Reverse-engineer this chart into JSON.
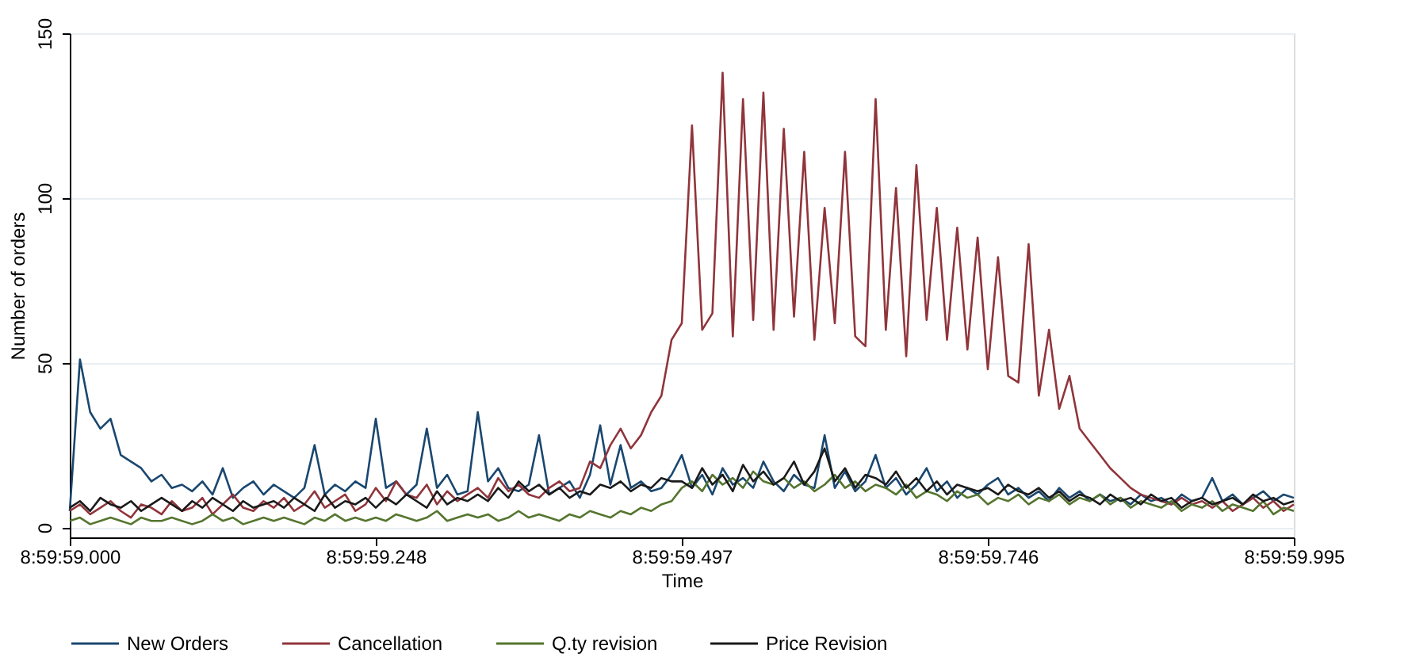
{
  "chart_data": {
    "type": "line",
    "xlabel": "Time",
    "ylabel": "Number of orders",
    "categories": [
      "8:59:59.000",
      null,
      null,
      null,
      null,
      null,
      null,
      null,
      null,
      null,
      null,
      null,
      null,
      null,
      null,
      null,
      null,
      null,
      null,
      null,
      null,
      null,
      null,
      null,
      null,
      null,
      null,
      null,
      null,
      null,
      "8:59:59.248",
      null,
      null,
      null,
      null,
      null,
      null,
      null,
      null,
      null,
      null,
      null,
      null,
      null,
      null,
      null,
      null,
      null,
      null,
      null,
      null,
      null,
      null,
      null,
      null,
      null,
      null,
      null,
      null,
      null,
      "8:59:59.497",
      null,
      null,
      null,
      null,
      null,
      null,
      null,
      null,
      null,
      null,
      null,
      null,
      null,
      null,
      null,
      null,
      null,
      null,
      null,
      null,
      null,
      null,
      null,
      null,
      null,
      null,
      null,
      null,
      null,
      "8:59:59.746",
      null,
      null,
      null,
      null,
      null,
      null,
      null,
      null,
      null,
      null,
      null,
      null,
      null,
      null,
      null,
      null,
      null,
      null,
      null,
      null,
      null,
      null,
      null,
      null,
      null,
      null,
      null,
      null,
      null,
      "8:59:59.995"
    ],
    "ylim": [
      -3,
      150
    ],
    "yticks": [
      0,
      50,
      100,
      150
    ],
    "grid": "y",
    "legend": "bottom",
    "line_style": "solid",
    "marker": "none",
    "series": [
      {
        "name": "New Orders",
        "color": "#1a476f",
        "values": [
          5,
          51,
          35,
          30,
          33,
          22,
          20,
          18,
          14,
          16,
          12,
          13,
          11,
          14,
          10,
          18,
          9,
          12,
          14,
          10,
          13,
          11,
          9,
          12,
          25,
          10,
          13,
          11,
          14,
          12,
          33,
          12,
          14,
          10,
          13,
          30,
          12,
          16,
          10,
          11,
          35,
          14,
          18,
          12,
          11,
          13,
          28,
          10,
          12,
          14,
          9,
          16,
          31,
          13,
          25,
          12,
          14,
          11,
          12,
          16,
          22,
          12,
          16,
          10,
          18,
          13,
          15,
          12,
          20,
          14,
          11,
          16,
          13,
          12,
          28,
          12,
          17,
          11,
          14,
          22,
          12,
          15,
          10,
          13,
          18,
          11,
          14,
          9,
          12,
          10,
          13,
          15,
          10,
          12,
          9,
          11,
          8,
          12,
          9,
          11,
          8,
          10,
          8,
          9,
          7,
          10,
          8,
          9,
          7,
          10,
          8,
          9,
          15,
          8,
          10,
          7,
          9,
          11,
          8,
          10,
          9
        ]
      },
      {
        "name": "Cancellation",
        "color": "#90353b",
        "values": [
          5,
          7,
          4,
          6,
          8,
          5,
          3,
          7,
          6,
          4,
          8,
          5,
          6,
          9,
          4,
          7,
          10,
          6,
          5,
          8,
          6,
          9,
          5,
          7,
          11,
          6,
          8,
          10,
          5,
          7,
          12,
          8,
          14,
          10,
          9,
          13,
          7,
          11,
          8,
          10,
          12,
          9,
          15,
          11,
          13,
          10,
          9,
          12,
          14,
          11,
          12,
          20,
          18,
          25,
          30,
          24,
          28,
          35,
          40,
          57,
          62,
          122,
          60,
          65,
          138,
          58,
          130,
          63,
          132,
          60,
          121,
          64,
          114,
          57,
          97,
          62,
          114,
          58,
          55,
          130,
          60,
          103,
          52,
          110,
          63,
          97,
          57,
          91,
          54,
          88,
          48,
          82,
          46,
          44,
          86,
          40,
          60,
          36,
          46,
          30,
          26,
          22,
          18,
          15,
          12,
          10,
          9,
          8,
          7,
          9,
          7,
          8,
          6,
          8,
          5,
          7,
          9,
          6,
          8,
          5,
          7
        ]
      },
      {
        "name": "Q.ty revision",
        "color": "#55752f",
        "values": [
          2,
          3,
          1,
          2,
          3,
          2,
          1,
          3,
          2,
          2,
          3,
          2,
          1,
          2,
          4,
          2,
          3,
          1,
          2,
          3,
          2,
          3,
          2,
          1,
          3,
          2,
          4,
          2,
          3,
          2,
          3,
          2,
          4,
          3,
          2,
          3,
          5,
          2,
          3,
          4,
          3,
          4,
          2,
          3,
          5,
          3,
          4,
          3,
          2,
          4,
          3,
          5,
          4,
          3,
          5,
          4,
          6,
          5,
          7,
          8,
          12,
          14,
          11,
          16,
          13,
          15,
          12,
          17,
          14,
          13,
          15,
          12,
          14,
          11,
          13,
          16,
          12,
          14,
          11,
          13,
          12,
          10,
          13,
          9,
          11,
          10,
          8,
          11,
          9,
          10,
          7,
          9,
          8,
          10,
          7,
          9,
          8,
          10,
          7,
          9,
          8,
          10,
          7,
          9,
          6,
          8,
          7,
          6,
          8,
          5,
          7,
          6,
          8,
          5,
          7,
          6,
          5,
          8,
          4,
          6,
          5
        ]
      },
      {
        "name": "Price Revision",
        "color": "#1a1a1a",
        "values": [
          6,
          8,
          5,
          9,
          7,
          6,
          8,
          5,
          7,
          9,
          7,
          5,
          8,
          6,
          9,
          7,
          5,
          8,
          6,
          7,
          8,
          6,
          9,
          7,
          5,
          10,
          6,
          8,
          7,
          9,
          6,
          9,
          7,
          10,
          8,
          6,
          11,
          7,
          9,
          8,
          10,
          8,
          12,
          9,
          14,
          11,
          13,
          10,
          12,
          9,
          11,
          10,
          13,
          12,
          14,
          11,
          13,
          12,
          15,
          14,
          14,
          12,
          18,
          13,
          16,
          11,
          19,
          14,
          17,
          13,
          15,
          20,
          13,
          17,
          24,
          14,
          18,
          12,
          16,
          15,
          13,
          17,
          12,
          15,
          11,
          14,
          10,
          13,
          12,
          11,
          12,
          10,
          13,
          11,
          10,
          12,
          9,
          11,
          8,
          10,
          9,
          7,
          10,
          8,
          9,
          7,
          10,
          8,
          9,
          6,
          8,
          9,
          7,
          8,
          9,
          7,
          10,
          8,
          9,
          7,
          8
        ]
      }
    ]
  }
}
